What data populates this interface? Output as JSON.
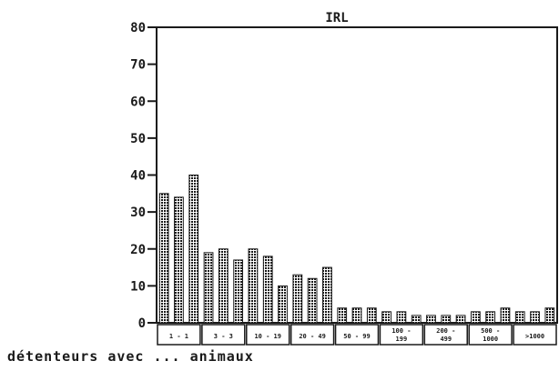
{
  "chart_data": {
    "type": "bar",
    "title": "IRL",
    "xlabel": "détenteurs avec ... animaux",
    "ylabel": "",
    "ylim": [
      0,
      80
    ],
    "yticks": [
      "0",
      "10",
      "20",
      "30",
      "40",
      "50",
      "60",
      "70",
      "80"
    ],
    "grid": false,
    "legend": "none",
    "bar_color": "#1a1a1a",
    "categories": [
      {
        "label": [
          "1 - 1"
        ],
        "values": [
          35,
          34,
          40
        ]
      },
      {
        "label": [
          "3 - 3"
        ],
        "values": [
          19,
          20,
          17
        ]
      },
      {
        "label": [
          "10 - 19"
        ],
        "values": [
          20,
          18,
          10
        ]
      },
      {
        "label": [
          "20 - 49"
        ],
        "values": [
          13,
          12,
          15
        ]
      },
      {
        "label": [
          "50 - 99"
        ],
        "values": [
          4,
          4,
          4
        ]
      },
      {
        "label": [
          "100 -",
          "199"
        ],
        "values": [
          3,
          3,
          2
        ]
      },
      {
        "label": [
          "200 -",
          "499"
        ],
        "values": [
          2,
          2,
          2
        ]
      },
      {
        "label": [
          "500 -",
          "1000"
        ],
        "values": [
          3,
          3,
          4
        ]
      },
      {
        "label": [
          ">1000"
        ],
        "values": [
          3,
          3,
          4
        ]
      }
    ]
  }
}
